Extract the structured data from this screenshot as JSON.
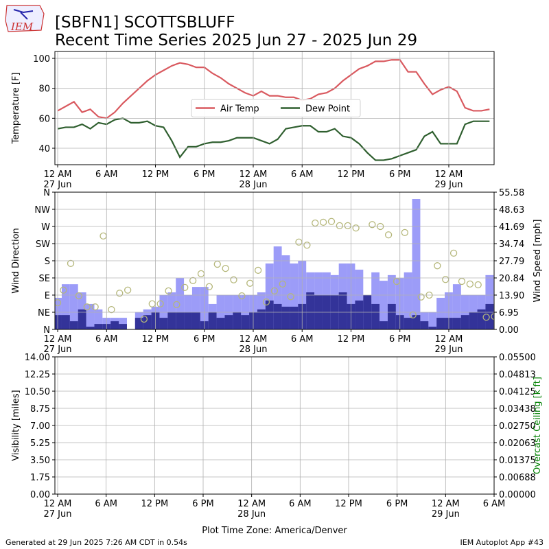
{
  "header": {
    "title": "[SBFN1] SCOTTSBLUFF",
    "subtitle": "Recent Time Series 2025 Jun 27 - 2025 Jun 29",
    "logo": "IEM"
  },
  "chart_data": [
    {
      "type": "line",
      "ylabel": "Temperature [F]",
      "grid": true,
      "legend": "center",
      "xlim": [
        -0.34,
        53.56
      ],
      "xticks": [
        {
          "value": 0,
          "label": "12 AM",
          "date": "27 Jun"
        },
        {
          "value": 6,
          "label": "6 AM"
        },
        {
          "value": 12,
          "label": "12 PM"
        },
        {
          "value": 18,
          "label": "6 PM"
        },
        {
          "value": 24,
          "label": "12 AM",
          "date": "28 Jun"
        },
        {
          "value": 30,
          "label": "6 AM"
        },
        {
          "value": 36,
          "label": "12 PM"
        },
        {
          "value": 42,
          "label": "6 PM"
        },
        {
          "value": 48,
          "label": "12 AM",
          "date": "29 Jun"
        }
      ],
      "ylim": [
        29,
        104.6
      ],
      "yticks": [
        40,
        60,
        80,
        100
      ],
      "x": [
        0,
        1,
        2,
        3,
        4,
        5,
        6,
        7,
        8,
        9,
        10,
        11,
        12,
        13,
        14,
        15,
        16,
        17,
        18,
        19,
        20,
        21,
        22,
        23,
        24,
        25,
        26,
        27,
        28,
        29,
        30,
        31,
        32,
        33,
        34,
        35,
        36,
        37,
        38,
        39,
        40,
        41,
        42,
        43,
        44,
        45,
        46,
        47,
        48,
        49,
        50,
        51,
        52,
        53
      ],
      "series": [
        {
          "name": "Air Temp",
          "color": "#d9595f",
          "values": [
            65,
            68,
            71,
            64,
            66,
            61,
            60,
            64,
            70,
            75,
            80,
            85,
            89,
            92,
            95,
            97,
            96,
            94,
            94,
            90,
            87,
            83,
            80,
            77,
            75,
            78,
            75,
            75,
            74,
            74,
            72,
            73,
            76,
            77,
            80,
            85,
            89,
            93,
            95,
            98,
            98,
            99,
            99,
            91,
            91,
            83,
            76,
            79,
            81,
            78,
            67,
            65,
            65,
            66
          ]
        },
        {
          "name": "Dew Point",
          "color": "#2f5f2f",
          "values": [
            53,
            54,
            54,
            56,
            53,
            57,
            56,
            59,
            60,
            57,
            57,
            58,
            55,
            54,
            45,
            34,
            41,
            41,
            43,
            44,
            44,
            45,
            47,
            47,
            47,
            45,
            43,
            46,
            53,
            54,
            55,
            55,
            51,
            51,
            53,
            48,
            47,
            43,
            37,
            32,
            32,
            33,
            35,
            37,
            39,
            48,
            51,
            43,
            43,
            43,
            56,
            58,
            58,
            58
          ]
        }
      ]
    },
    {
      "type": "bar",
      "ylabel": "Wind Direction",
      "y2label": "Wind Speed [mph]",
      "grid": true,
      "xlim": [
        -0.34,
        53.56
      ],
      "xticks": [
        {
          "value": 0,
          "label": "12 AM",
          "date": "27 Jun"
        },
        {
          "value": 6,
          "label": "6 AM"
        },
        {
          "value": 12,
          "label": "12 PM"
        },
        {
          "value": 18,
          "label": "6 PM"
        },
        {
          "value": 24,
          "label": "12 AM",
          "date": "28 Jun"
        },
        {
          "value": 30,
          "label": "6 AM"
        },
        {
          "value": 36,
          "label": "12 PM"
        },
        {
          "value": 42,
          "label": "6 PM"
        },
        {
          "value": 48,
          "label": "12 AM",
          "date": "29 Jun"
        }
      ],
      "ylim": [
        0,
        360
      ],
      "yticks": [
        {
          "value": 0,
          "label": "N"
        },
        {
          "value": 45,
          "label": "NE"
        },
        {
          "value": 90,
          "label": "E"
        },
        {
          "value": 135,
          "label": "SE"
        },
        {
          "value": 180,
          "label": "S"
        },
        {
          "value": 225,
          "label": "SW"
        },
        {
          "value": 270,
          "label": "W"
        },
        {
          "value": 315,
          "label": "NW"
        },
        {
          "value": 360,
          "label": "N"
        }
      ],
      "y2lim": [
        0,
        55.58
      ],
      "y2ticks": [
        {
          "value": 0,
          "label": "0.00"
        },
        {
          "value": 6.95,
          "label": "6.95"
        },
        {
          "value": 13.9,
          "label": "13.90"
        },
        {
          "value": 20.84,
          "label": "20.84"
        },
        {
          "value": 27.79,
          "label": "27.79"
        },
        {
          "value": 34.74,
          "label": "34.74"
        },
        {
          "value": 41.69,
          "label": "41.69"
        },
        {
          "value": 48.63,
          "label": "48.63"
        },
        {
          "value": 55.58,
          "label": "55.58"
        }
      ],
      "x": [
        0,
        1,
        2,
        3,
        4,
        5,
        6,
        7,
        8,
        9,
        10,
        11,
        12,
        13,
        14,
        15,
        16,
        17,
        18,
        19,
        20,
        21,
        22,
        23,
        24,
        25,
        26,
        27,
        28,
        29,
        30,
        31,
        32,
        33,
        34,
        35,
        36,
        37,
        38,
        39,
        40,
        41,
        42,
        43,
        44,
        45,
        46,
        47,
        48,
        49,
        50,
        51,
        52,
        53
      ],
      "series": [
        {
          "color": "#9c9cf8",
          "axis": "y2",
          "values": [
            12.8,
            18.3,
            18.3,
            15,
            10.3,
            8.1,
            4.7,
            4.7,
            4.7,
            0,
            6.9,
            8.1,
            9.2,
            13.9,
            15,
            20.8,
            13.9,
            17.2,
            17.2,
            10.3,
            13.9,
            13.9,
            13.9,
            13.9,
            13.9,
            15,
            26.7,
            33.6,
            30,
            26.7,
            27.8,
            23.1,
            23.1,
            23.1,
            22,
            26.7,
            26.7,
            24.2,
            13.9,
            23.1,
            19.7,
            22,
            20.8,
            23.1,
            52.8,
            6.9,
            6.9,
            12.8,
            15,
            18.3,
            13.9,
            13.9,
            13.9,
            22
          ]
        },
        {
          "color": "#333399",
          "axis": "y2",
          "values": [
            5.8,
            5.8,
            3.3,
            8.1,
            1.1,
            2.2,
            2.2,
            3.3,
            2.2,
            0,
            4.7,
            5.8,
            6.9,
            4.7,
            6.9,
            6.9,
            6.9,
            6.9,
            3.3,
            6.9,
            4.7,
            5.8,
            6.9,
            5.8,
            6.9,
            8.1,
            11.7,
            10.3,
            9.2,
            9.2,
            10.3,
            15,
            13.9,
            13.9,
            13.9,
            15,
            10.3,
            11.7,
            13.9,
            10.3,
            3.3,
            10.3,
            5.8,
            4.7,
            5.8,
            3.3,
            1.1,
            4.7,
            4.7,
            4.7,
            5.8,
            6.9,
            8.1,
            10.3
          ]
        },
        {
          "type": "scatter",
          "color": "#b5b77a",
          "axis": "y",
          "x": [
            0,
            0.7,
            1.6,
            2.6,
            3.6,
            4.6,
            5.6,
            6.6,
            7.6,
            8.6,
            10.6,
            11.6,
            12.6,
            13.6,
            14.6,
            15.6,
            16.6,
            17.6,
            18.6,
            19.6,
            20.6,
            21.6,
            22.6,
            23.6,
            24.6,
            25.6,
            26.6,
            27.6,
            28.6,
            29.6,
            30.6,
            31.6,
            32.6,
            33.6,
            34.6,
            35.6,
            36.6,
            38.6,
            39.6,
            40.6,
            41.6,
            42.6,
            43.6,
            44.6,
            45.6,
            46.6,
            47.6,
            48.6,
            49.6,
            50.6,
            51.6,
            52.6,
            53.6
          ],
          "values": [
            70,
            103,
            173,
            88,
            59,
            59,
            245,
            52,
            95,
            103,
            27,
            67,
            67,
            101,
            65,
            110,
            128,
            146,
            112,
            171,
            160,
            130,
            88,
            121,
            155,
            72,
            101,
            119,
            86,
            229,
            221,
            279,
            281,
            283,
            272,
            272,
            266,
            275,
            270,
            248,
            126,
            254,
            38,
            85,
            90,
            167,
            131,
            200,
            126,
            119,
            117,
            32,
            34
          ]
        }
      ]
    },
    {
      "type": "line",
      "ylabel": "Visibility [miles]",
      "y2label": "Overcast Ceiling [k ft]",
      "y2label_color": "#008000",
      "xlabel": "Plot Time Zone: America/Denver",
      "grid": true,
      "xlim": [
        -0.34,
        54
      ],
      "xticks": [
        {
          "value": 0,
          "label": "12 AM",
          "date": "27 Jun"
        },
        {
          "value": 6,
          "label": "6 AM"
        },
        {
          "value": 12,
          "label": "12 PM"
        },
        {
          "value": 18,
          "label": "6 PM"
        },
        {
          "value": 24,
          "label": "12 AM",
          "date": "28 Jun"
        },
        {
          "value": 30,
          "label": "6 AM"
        },
        {
          "value": 36,
          "label": "12 PM"
        },
        {
          "value": 42,
          "label": "6 PM"
        },
        {
          "value": 48,
          "label": "12 AM",
          "date": "29 Jun"
        },
        {
          "value": 54,
          "label": "6 AM"
        }
      ],
      "ylim": [
        0,
        14
      ],
      "yticks": [
        {
          "value": 0,
          "label": "0.00"
        },
        {
          "value": 1.75,
          "label": "1.75"
        },
        {
          "value": 3.5,
          "label": "3.50"
        },
        {
          "value": 5.25,
          "label": "5.25"
        },
        {
          "value": 7,
          "label": "7.00"
        },
        {
          "value": 8.75,
          "label": "8.75"
        },
        {
          "value": 10.5,
          "label": "10.50"
        },
        {
          "value": 12.25,
          "label": "12.25"
        },
        {
          "value": 14,
          "label": "14.00"
        }
      ],
      "y2lim": [
        0,
        0.055
      ],
      "y2ticks": [
        {
          "value": 0,
          "label": "0.00000"
        },
        {
          "value": 0.00688,
          "label": "0.00688"
        },
        {
          "value": 0.01375,
          "label": "0.01375"
        },
        {
          "value": 0.02063,
          "label": "0.02063"
        },
        {
          "value": 0.0275,
          "label": "0.02750"
        },
        {
          "value": 0.03438,
          "label": "0.03438"
        },
        {
          "value": 0.04125,
          "label": "0.04125"
        },
        {
          "value": 0.04813,
          "label": "0.04813"
        },
        {
          "value": 0.055,
          "label": "0.05500"
        }
      ],
      "series": []
    }
  ],
  "footer": {
    "left": "Generated at 29 Jun 2025 7:26 AM CDT in 0.54s",
    "right": "IEM Autoplot App #43"
  }
}
